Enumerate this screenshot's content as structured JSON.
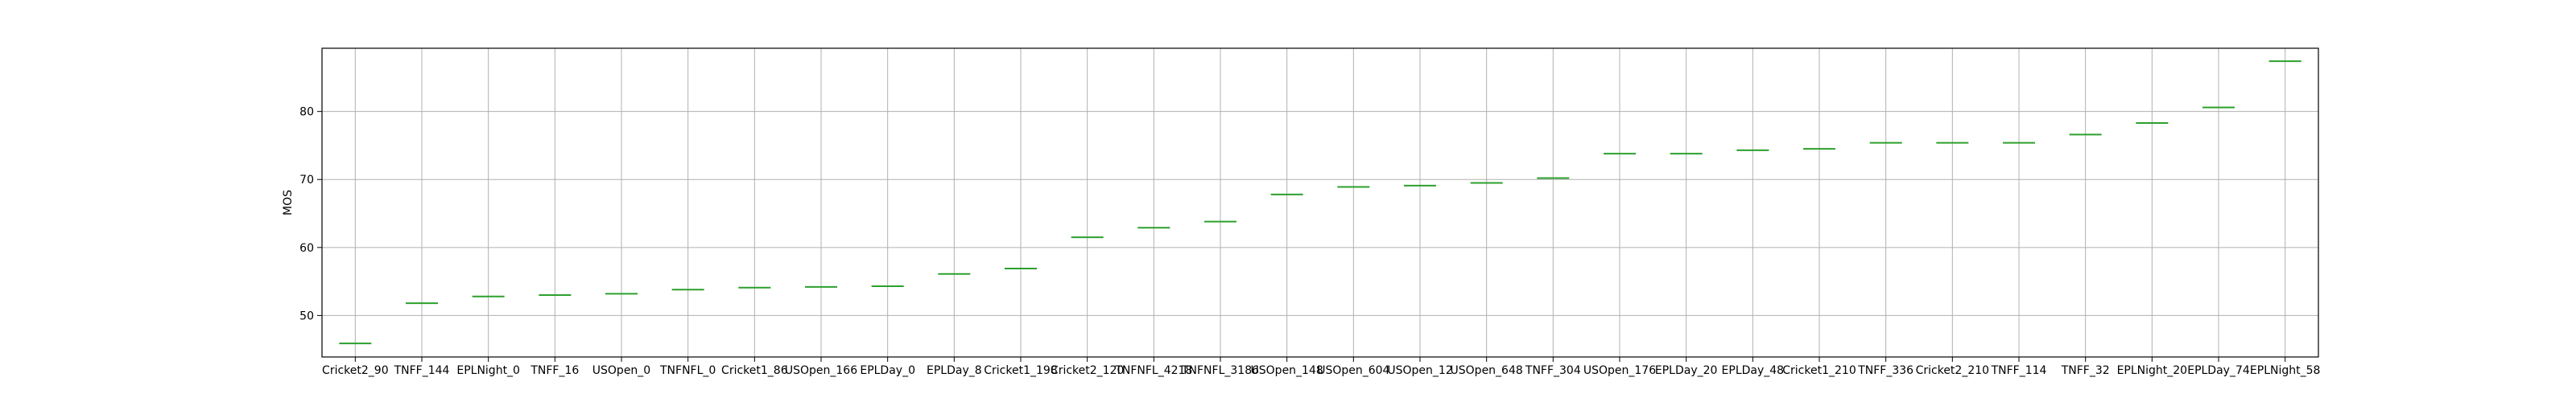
{
  "chart_data": {
    "type": "box",
    "ylabel": "MOS",
    "ylim": [
      43.9,
      89.3
    ],
    "yticks": [
      50,
      60,
      70,
      80
    ],
    "grid": true,
    "colors": {
      "median": "#2ca02c",
      "grid": "#b0b0b0",
      "axes": "#000000"
    },
    "categories": [
      "Cricket2_90",
      "TNFF_144",
      "EPLNight_0",
      "TNFF_16",
      "USOpen_0",
      "TNFNFL_0",
      "Cricket1_86",
      "USOpen_166",
      "EPLDay_0",
      "EPLDay_8",
      "Cricket1_198",
      "Cricket2_120",
      "TNFNFL_4218",
      "TNFNFL_3186",
      "USOpen_148",
      "USOpen_604",
      "USOpen_12",
      "USOpen_648",
      "TNFF_304",
      "USOpen_176",
      "EPLDay_20",
      "EPLDay_48",
      "Cricket1_210",
      "TNFF_336",
      "Cricket2_210",
      "TNFF_114",
      "TNFF_32",
      "EPLNight_20",
      "EPLDay_74",
      "EPLNight_58"
    ],
    "values": [
      45.9,
      51.8,
      52.8,
      53.0,
      53.2,
      53.8,
      54.1,
      54.2,
      54.3,
      56.1,
      56.9,
      61.5,
      62.9,
      63.8,
      67.8,
      68.9,
      69.1,
      69.5,
      70.2,
      73.8,
      73.8,
      74.3,
      74.5,
      75.4,
      75.4,
      75.4,
      76.6,
      78.3,
      80.6,
      87.4
    ]
  }
}
